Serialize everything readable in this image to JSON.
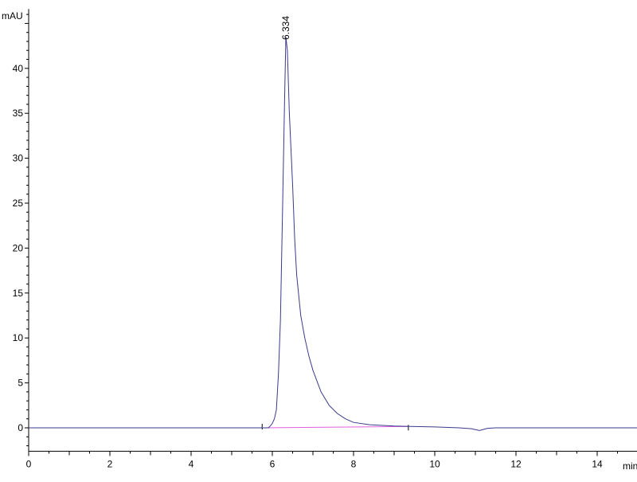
{
  "chart_data": {
    "type": "line",
    "title": "",
    "xlabel": "min",
    "ylabel": "mAU",
    "xlim": [
      0,
      15
    ],
    "ylim": [
      -2.6,
      46.6
    ],
    "x_ticks": [
      0,
      2,
      4,
      6,
      8,
      10,
      12,
      14
    ],
    "y_ticks": [
      0,
      5,
      10,
      15,
      20,
      25,
      30,
      35,
      40
    ],
    "grid": false,
    "colors": {
      "trace": "#3a3a8c",
      "baseline": "#e060e0",
      "axis": "#000000"
    },
    "series": [
      {
        "x": [
          0,
          5.9,
          5.95,
          6.0,
          6.05,
          6.1,
          6.15,
          6.2,
          6.25,
          6.3,
          6.334,
          6.37,
          6.42,
          6.5,
          6.55,
          6.6,
          6.7,
          6.8,
          6.9,
          7.0,
          7.2,
          7.4,
          7.6,
          7.8,
          8.0,
          8.4,
          9.0,
          9.4,
          10.0,
          10.6,
          10.9,
          11.1,
          11.3,
          11.5,
          15
        ],
        "y": [
          0,
          0,
          0.2,
          0.5,
          1.0,
          2,
          6,
          12,
          24,
          36,
          43.5,
          42,
          35,
          27,
          21,
          17,
          12.5,
          10,
          8,
          6.4,
          4,
          2.5,
          1.6,
          1.0,
          0.6,
          0.35,
          0.2,
          0.15,
          0.1,
          0,
          -0.1,
          -0.3,
          -0.05,
          0,
          0
        ]
      }
    ],
    "integration_baseline": {
      "x": [
        5.75,
        9.35
      ],
      "y": [
        0,
        0.15
      ]
    },
    "peaks": [
      {
        "retention_time": 6.334,
        "label": "6.334"
      }
    ]
  }
}
